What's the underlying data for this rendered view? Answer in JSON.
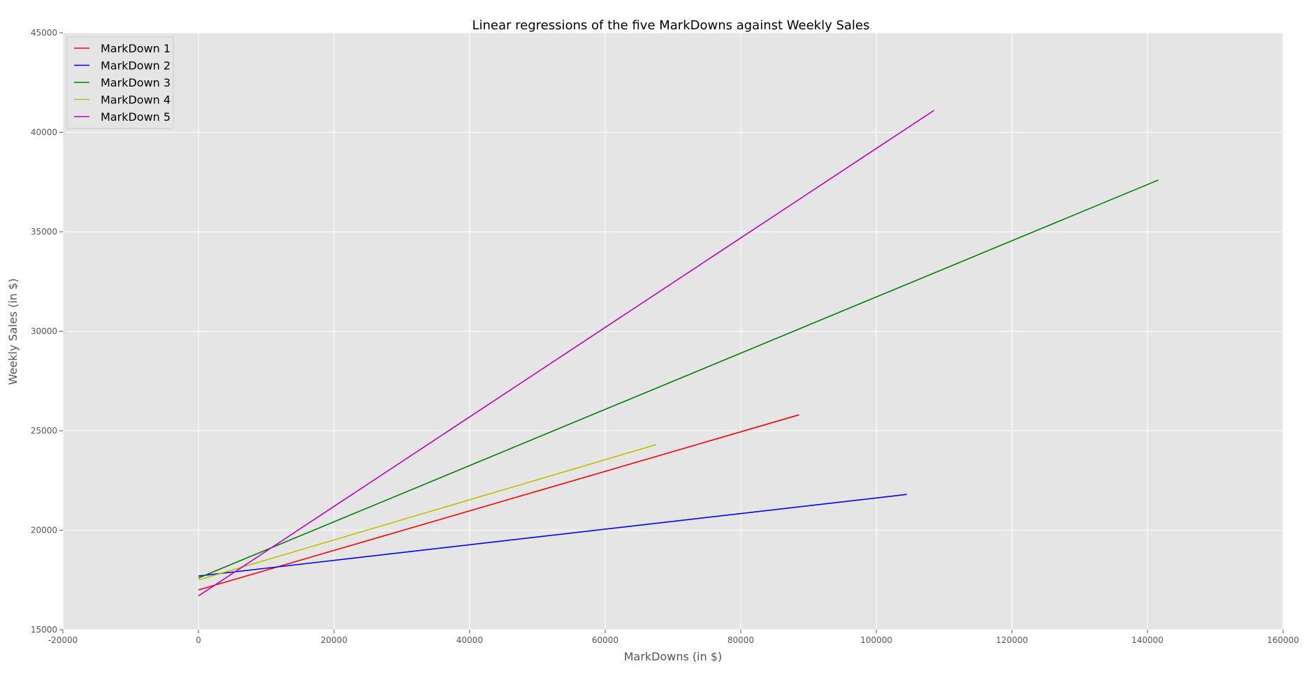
{
  "chart_data": {
    "type": "line",
    "title": "Linear regressions of the five MarkDowns against Weekly Sales",
    "xlabel": "MarkDowns (in $)",
    "ylabel": "Weekly Sales (in $)",
    "xlim": [
      -20000,
      160000
    ],
    "ylim": [
      15000,
      45000
    ],
    "xticks": [
      -20000,
      0,
      20000,
      40000,
      60000,
      80000,
      100000,
      120000,
      140000,
      160000
    ],
    "yticks": [
      15000,
      20000,
      25000,
      30000,
      35000,
      40000,
      45000
    ],
    "grid": true,
    "legend_position": "top-left",
    "background": "#e5e5e5",
    "series": [
      {
        "name": "MarkDown 1",
        "color": "#ff0000",
        "x": [
          0,
          88600
        ],
        "y": [
          17000,
          25800
        ]
      },
      {
        "name": "MarkDown 2",
        "color": "#0000ff",
        "x": [
          0,
          104500
        ],
        "y": [
          17700,
          21800
        ]
      },
      {
        "name": "MarkDown 3",
        "color": "#007f00",
        "x": [
          0,
          141600
        ],
        "y": [
          17600,
          37600
        ]
      },
      {
        "name": "MarkDown 4",
        "color": "#bfbf00",
        "x": [
          0,
          67500
        ],
        "y": [
          17500,
          24300
        ]
      },
      {
        "name": "MarkDown 5",
        "color": "#bf00bf",
        "x": [
          0,
          108500
        ],
        "y": [
          16700,
          41100
        ]
      }
    ]
  }
}
